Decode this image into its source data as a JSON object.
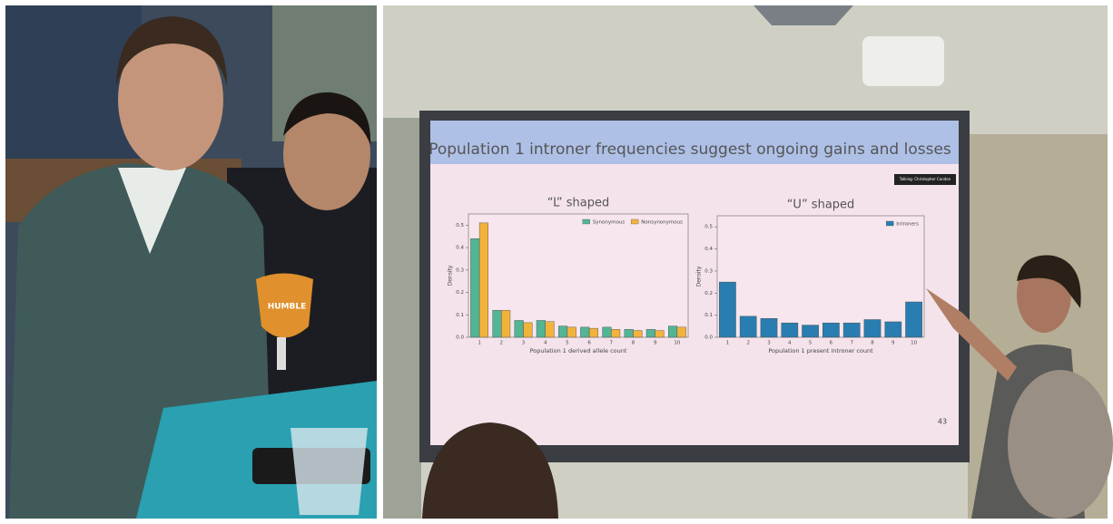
{
  "photo_left": {
    "glass_text": "HUMBLE"
  },
  "slide": {
    "title": "Population 1 introner frequencies suggest ongoing gains and losses",
    "speaker_label": "Talking: Christopher Condon",
    "page_number": "43"
  },
  "chart_data": [
    {
      "type": "bar",
      "title": "“L” shaped",
      "xlabel": "Population 1 derived allele count",
      "ylabel": "Density",
      "categories": [
        "1",
        "2",
        "3",
        "4",
        "5",
        "6",
        "7",
        "8",
        "9",
        "10"
      ],
      "series": [
        {
          "name": "Synonymous",
          "color": "#52b596",
          "values": [
            0.44,
            0.12,
            0.075,
            0.075,
            0.05,
            0.045,
            0.045,
            0.035,
            0.035,
            0.05
          ]
        },
        {
          "name": "Nonsynonymous",
          "color": "#f2b33d",
          "values": [
            0.51,
            0.12,
            0.065,
            0.07,
            0.045,
            0.04,
            0.035,
            0.03,
            0.03,
            0.045
          ]
        }
      ],
      "ylim": [
        0,
        0.55
      ],
      "yticks": [
        {
          "value": 0,
          "label": "0.0"
        },
        0.1,
        0.2,
        0.3,
        0.4,
        0.5
      ],
      "legend": "upper right"
    },
    {
      "type": "bar",
      "title": "“U” shaped",
      "xlabel": "Population 1 present introner count",
      "ylabel": "Density",
      "categories": [
        "1",
        "2",
        "3",
        "4",
        "5",
        "6",
        "7",
        "8",
        "9",
        "10"
      ],
      "series": [
        {
          "name": "Introners",
          "color": "#2a7db0",
          "values": [
            0.25,
            0.095,
            0.085,
            0.065,
            0.055,
            0.065,
            0.065,
            0.08,
            0.07,
            0.16
          ]
        }
      ],
      "ylim": [
        0,
        0.55
      ],
      "yticks": [
        {
          "value": 0,
          "label": "0.0"
        },
        0.1,
        0.2,
        0.3,
        0.4,
        0.5
      ],
      "legend": "upper right"
    }
  ]
}
